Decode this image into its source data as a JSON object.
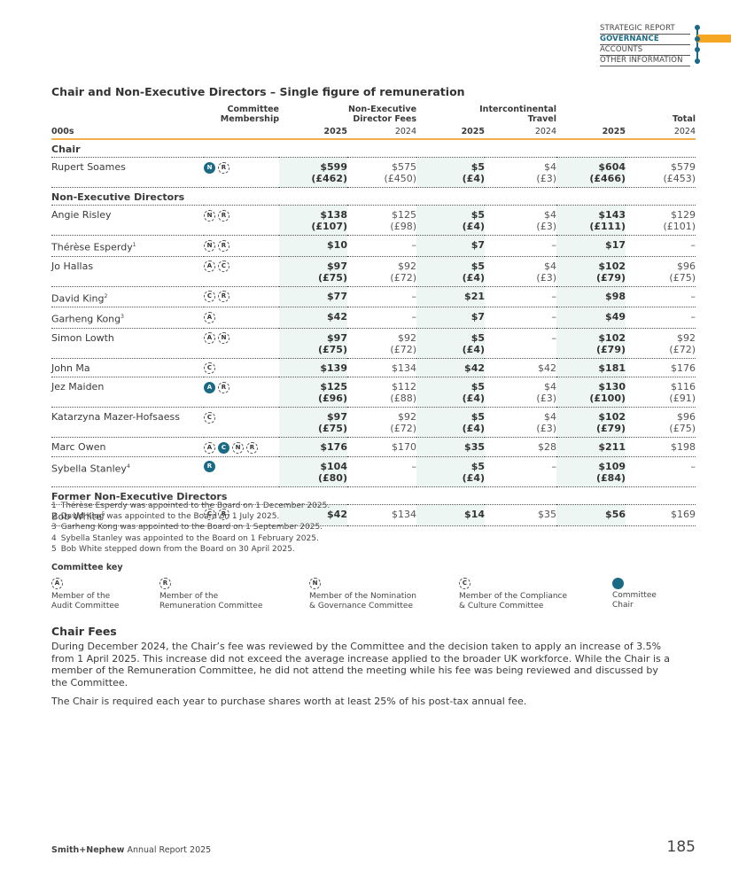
{
  "nav": {
    "items": [
      "STRATEGIC REPORT",
      "GOVERNANCE",
      "ACCOUNTS",
      "OTHER INFORMATION"
    ],
    "active": 1
  },
  "table": {
    "title": "Chair and Non-Executive Directors – Single figure of remuneration",
    "groups": [
      [
        "Committee",
        "Membership"
      ],
      [
        "Non-Executive",
        "Director Fees"
      ],
      [
        "Intercontinental",
        "Travel"
      ],
      [
        "Total"
      ]
    ],
    "unit": "000s",
    "years": [
      "2025",
      "2024",
      "2025",
      "2024",
      "2025",
      "2024"
    ],
    "sections": [
      {
        "heading": "Chair",
        "rows": [
          {
            "name": "Rupert Soames",
            "committees": [
              {
                "letter": "N",
                "chair": true
              },
              {
                "letter": "R",
                "chair": false
              }
            ],
            "cells": [
              [
                "$599",
                "(£462)"
              ],
              [
                "$575",
                "(£450)"
              ],
              [
                "$5",
                "(£4)"
              ],
              [
                "$4",
                "(£3)"
              ],
              [
                "$604",
                "(£466)"
              ],
              [
                "$579",
                "(£453)"
              ]
            ]
          }
        ]
      },
      {
        "heading": "Non-Executive Directors",
        "rows": [
          {
            "name": "Angie Risley",
            "committees": [
              {
                "letter": "N",
                "chair": false
              },
              {
                "letter": "R",
                "chair": false
              }
            ],
            "cells": [
              [
                "$138",
                "(£107)"
              ],
              [
                "$125",
                "(£98)"
              ],
              [
                "$5",
                "(£4)"
              ],
              [
                "$4",
                "(£3)"
              ],
              [
                "$143",
                "(£111)"
              ],
              [
                "$129",
                "(£101)"
              ]
            ]
          },
          {
            "name": "Thérèse Esperdy",
            "note": "1",
            "committees": [
              {
                "letter": "N",
                "chair": false
              },
              {
                "letter": "R",
                "chair": false
              }
            ],
            "cells": [
              [
                "$10"
              ],
              [
                "–"
              ],
              [
                "$7"
              ],
              [
                "–"
              ],
              [
                "$17"
              ],
              [
                "–"
              ]
            ]
          },
          {
            "name": "Jo Hallas",
            "committees": [
              {
                "letter": "A",
                "chair": false
              },
              {
                "letter": "C",
                "chair": false
              }
            ],
            "cells": [
              [
                "$97",
                "(£75)"
              ],
              [
                "$92",
                "(£72)"
              ],
              [
                "$5",
                "(£4)"
              ],
              [
                "$4",
                "(£3)"
              ],
              [
                "$102",
                "(£79)"
              ],
              [
                "$96",
                "(£75)"
              ]
            ]
          },
          {
            "name": "David King",
            "note": "2",
            "committees": [
              {
                "letter": "C",
                "chair": false
              },
              {
                "letter": "R",
                "chair": false
              }
            ],
            "cells": [
              [
                "$77"
              ],
              [
                "–"
              ],
              [
                "$21"
              ],
              [
                "–"
              ],
              [
                "$98"
              ],
              [
                "–"
              ]
            ]
          },
          {
            "name": "Garheng Kong",
            "note": "3",
            "committees": [
              {
                "letter": "A",
                "chair": false
              }
            ],
            "cells": [
              [
                "$42"
              ],
              [
                "–"
              ],
              [
                "$7"
              ],
              [
                "–"
              ],
              [
                "$49"
              ],
              [
                "–"
              ]
            ]
          },
          {
            "name": "Simon Lowth",
            "committees": [
              {
                "letter": "A",
                "chair": false
              },
              {
                "letter": "N",
                "chair": false
              }
            ],
            "cells": [
              [
                "$97",
                "(£75)"
              ],
              [
                "$92",
                "(£72)"
              ],
              [
                "$5",
                "(£4)"
              ],
              [
                "–"
              ],
              [
                "$102",
                "(£79)"
              ],
              [
                "$92",
                "(£72)"
              ]
            ]
          },
          {
            "name": "John Ma",
            "committees": [
              {
                "letter": "C",
                "chair": false
              }
            ],
            "cells": [
              [
                "$139"
              ],
              [
                "$134"
              ],
              [
                "$42"
              ],
              [
                "$42"
              ],
              [
                "$181"
              ],
              [
                "$176"
              ]
            ]
          },
          {
            "name": "Jez Maiden",
            "committees": [
              {
                "letter": "A",
                "chair": true
              },
              {
                "letter": "R",
                "chair": false
              }
            ],
            "cells": [
              [
                "$125",
                "(£96)"
              ],
              [
                "$112",
                "(£88)"
              ],
              [
                "$5",
                "(£4)"
              ],
              [
                "$4",
                "(£3)"
              ],
              [
                "$130",
                "(£100)"
              ],
              [
                "$116",
                "(£91)"
              ]
            ]
          },
          {
            "name": "Katarzyna Mazer-Hofsaess",
            "committees": [
              {
                "letter": "C",
                "chair": false
              }
            ],
            "cells": [
              [
                "$97",
                "(£75)"
              ],
              [
                "$92",
                "(£72)"
              ],
              [
                "$5",
                "(£4)"
              ],
              [
                "$4",
                "(£3)"
              ],
              [
                "$102",
                "(£79)"
              ],
              [
                "$96",
                "(£75)"
              ]
            ]
          },
          {
            "name": "Marc Owen",
            "committees": [
              {
                "letter": "A",
                "chair": false
              },
              {
                "letter": "C",
                "chair": true
              },
              {
                "letter": "N",
                "chair": false
              },
              {
                "letter": "R",
                "chair": false
              }
            ],
            "cells": [
              [
                "$176"
              ],
              [
                "$170"
              ],
              [
                "$35"
              ],
              [
                "$28"
              ],
              [
                "$211"
              ],
              [
                "$198"
              ]
            ]
          },
          {
            "name": "Sybella Stanley",
            "note": "4",
            "committees": [
              {
                "letter": "R",
                "chair": true
              }
            ],
            "cells": [
              [
                "$104",
                "(£80)"
              ],
              [
                "–"
              ],
              [
                "$5",
                "(£4)"
              ],
              [
                "–"
              ],
              [
                "$109",
                "(£84)"
              ],
              [
                "–"
              ]
            ]
          }
        ]
      },
      {
        "heading": "Former Non-Executive Directors",
        "rows": [
          {
            "name": "Bob White",
            "note": "5",
            "committees": [
              {
                "letter": "C",
                "chair": false
              },
              {
                "letter": "R",
                "chair": false
              }
            ],
            "cells": [
              [
                "$42"
              ],
              [
                "$134"
              ],
              [
                "$14"
              ],
              [
                "$35"
              ],
              [
                "$56"
              ],
              [
                "$169"
              ]
            ]
          }
        ]
      }
    ]
  },
  "footnotes": [
    {
      "num": "1",
      "text": "Thérèse Esperdy was appointed to the Board on 1 December 2025."
    },
    {
      "num": "2",
      "text": "David King was appointed to the Board on 1 July 2025."
    },
    {
      "num": "3",
      "text": "Garheng Kong was appointed to the Board on 1 September 2025."
    },
    {
      "num": "4",
      "text": "Sybella Stanley was appointed to the Board on 1 February 2025."
    },
    {
      "num": "5",
      "text": "Bob White stepped down from the Board on 30 April 2025."
    }
  ],
  "committee_key": {
    "title": "Committee key",
    "items": [
      {
        "letter": "A",
        "lines": [
          "Member of the",
          "Audit Committee"
        ]
      },
      {
        "letter": "R",
        "lines": [
          "Member of the",
          "Remuneration Committee"
        ]
      },
      {
        "letter": "N",
        "lines": [
          "Member of the Nomination",
          "& Governance Committee"
        ]
      },
      {
        "letter": "C",
        "lines": [
          "Member of the Compliance",
          "& Culture Committee"
        ]
      },
      {
        "chair": true,
        "lines": [
          "Committee",
          "Chair"
        ]
      }
    ]
  },
  "chair_fees": {
    "heading": "Chair Fees",
    "paragraphs": [
      "During December 2024, the Chair’s fee was reviewed by the Committee and the decision taken to apply an increase of 3.5% from 1 April 2025. This increase did not exceed the average increase applied to the broader UK workforce. While the Chair is a member of the Remuneration Committee, he did not attend the meeting while his fee was being reviewed and discussed by the Committee.",
      "The Chair is required each year to purchase shares worth at least 25% of his post-tax annual fee."
    ]
  },
  "footer": {
    "brand": "Smith+Nephew",
    "report": "Annual Report 2025",
    "page": "185"
  }
}
